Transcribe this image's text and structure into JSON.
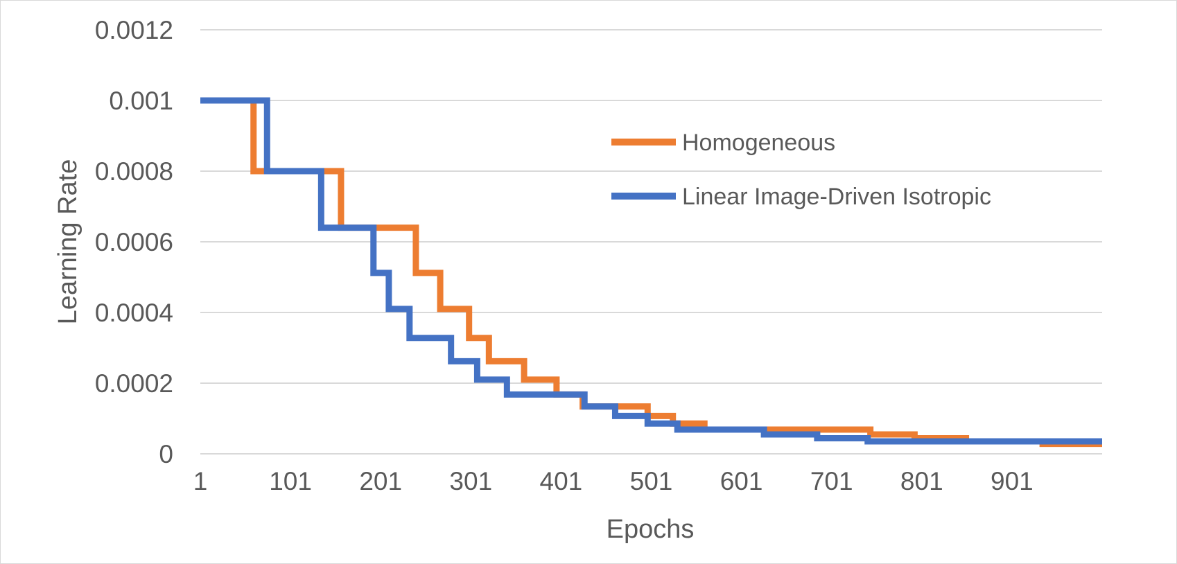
{
  "chart_data": {
    "type": "line",
    "title": "",
    "xlabel": "Epochs",
    "ylabel": "Learning Rate",
    "xlim": [
      1,
      1001
    ],
    "ylim": [
      0,
      0.0012
    ],
    "x_ticks": [
      "1",
      "101",
      "201",
      "301",
      "401",
      "501",
      "601",
      "701",
      "801",
      "901"
    ],
    "y_ticks": [
      "0",
      "0.0002",
      "0.0004",
      "0.0006",
      "0.0008",
      "0.001",
      "0.0012"
    ],
    "grid": true,
    "legend_position": "top-right",
    "series": [
      {
        "name": "Homogeneous",
        "color": "#ED7D31",
        "steps": [
          [
            1,
            0.001
          ],
          [
            60,
            0.0008
          ],
          [
            157,
            0.00064
          ],
          [
            240,
            0.000512
          ],
          [
            267,
            0.00041
          ],
          [
            299,
            0.000328
          ],
          [
            321,
            0.000262
          ],
          [
            360,
            0.00021
          ],
          [
            396,
            0.000168
          ],
          [
            425,
            0.000134
          ],
          [
            497,
            0.000107
          ],
          [
            525,
            8.59e-05
          ],
          [
            560,
            6.87e-05
          ],
          [
            744,
            5.5e-05
          ],
          [
            793,
            4.4e-05
          ],
          [
            850,
            3.52e-05
          ],
          [
            935,
            2.81e-05
          ]
        ],
        "end_x": 1001
      },
      {
        "name": "Linear Image-Driven Isotropic",
        "color": "#4472C4",
        "steps": [
          [
            1,
            0.001
          ],
          [
            75,
            0.0008
          ],
          [
            135,
            0.00064
          ],
          [
            193,
            0.000512
          ],
          [
            210,
            0.00041
          ],
          [
            233,
            0.000328
          ],
          [
            279,
            0.000262
          ],
          [
            308,
            0.00021
          ],
          [
            341,
            0.000168
          ],
          [
            427,
            0.000134
          ],
          [
            461,
            0.000107
          ],
          [
            497,
            8.59e-05
          ],
          [
            530,
            6.87e-05
          ],
          [
            626,
            5.5e-05
          ],
          [
            685,
            4.4e-05
          ],
          [
            741,
            3.52e-05
          ]
        ],
        "end_x": 1001
      }
    ]
  }
}
